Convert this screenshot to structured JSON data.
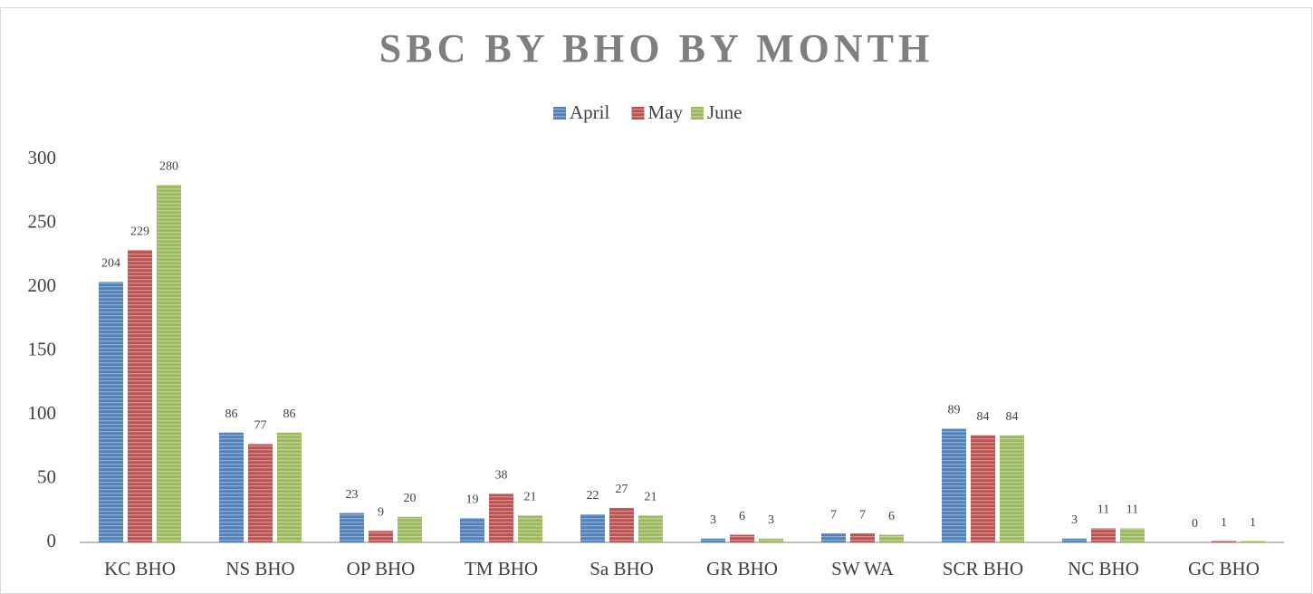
{
  "chart_data": {
    "type": "bar",
    "title": "SBC BY BHO BY MONTH",
    "categories": [
      "KC BHO",
      "NS BHO",
      "OP BHO",
      "TM BHO",
      "Sa BHO",
      "GR BHO",
      "SW WA",
      "SCR BHO",
      "NC BHO",
      "GC BHO"
    ],
    "series": [
      {
        "name": "April",
        "color": "#4f81bd",
        "values": [
          204,
          86,
          23,
          19,
          22,
          3,
          7,
          89,
          3,
          0
        ]
      },
      {
        "name": "May",
        "color": "#c0504d",
        "values": [
          229,
          77,
          9,
          38,
          27,
          6,
          7,
          84,
          11,
          1
        ]
      },
      {
        "name": "June",
        "color": "#9bbb59",
        "values": [
          280,
          86,
          20,
          21,
          21,
          3,
          6,
          84,
          11,
          1
        ]
      }
    ],
    "ylim": [
      0,
      300
    ],
    "yticks": [
      0,
      50,
      100,
      150,
      200,
      250,
      300
    ],
    "grid": false,
    "legend": "top"
  }
}
